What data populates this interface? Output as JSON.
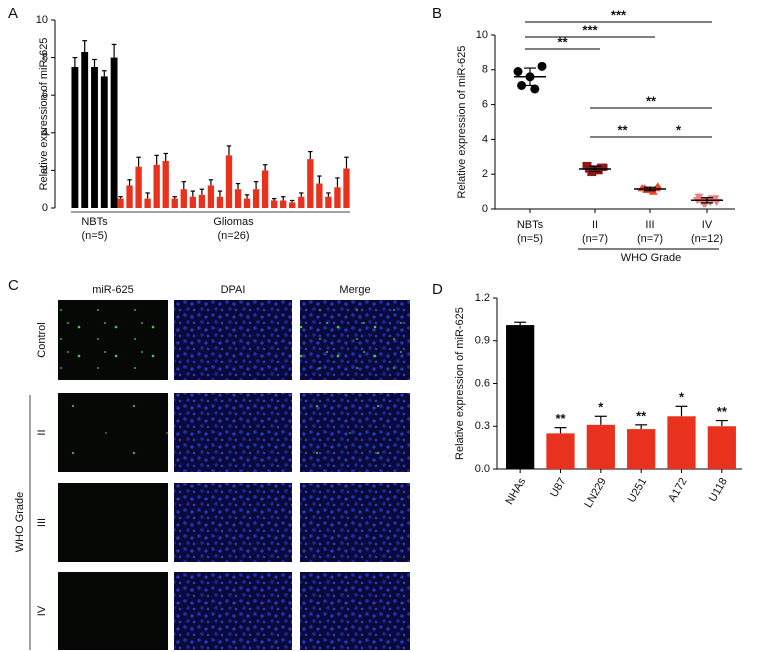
{
  "chart_data": [
    {
      "type": "bar",
      "panel": "A",
      "ylabel": "Relative expression of miR-625",
      "ylim": [
        0,
        10
      ],
      "yticks": [
        0,
        2,
        4,
        6,
        8,
        10
      ],
      "series": [
        {
          "name": "NBTs",
          "sublabel": "(n=5)",
          "color": "#000000",
          "values": [
            7.5,
            8.3,
            7.5,
            7.0,
            8.0
          ],
          "errors": [
            0.5,
            0.6,
            0.4,
            0.3,
            0.7
          ]
        },
        {
          "name": "Gliomas",
          "sublabel": "(n=26)",
          "color": "#e8321e",
          "values": [
            0.5,
            1.2,
            2.2,
            0.5,
            2.3,
            2.5,
            0.5,
            1.0,
            0.6,
            0.7,
            1.2,
            0.6,
            2.8,
            1.0,
            0.5,
            1.0,
            2.0,
            0.4,
            0.4,
            0.3,
            0.6,
            2.6,
            1.3,
            0.6,
            1.1,
            2.1
          ],
          "errors": [
            0.1,
            0.3,
            0.5,
            0.3,
            0.5,
            0.4,
            0.1,
            0.4,
            0.3,
            0.3,
            0.3,
            0.3,
            0.5,
            0.3,
            0.2,
            0.4,
            0.3,
            0.1,
            0.2,
            0.1,
            0.2,
            0.4,
            0.4,
            0.2,
            0.5,
            0.6
          ]
        }
      ]
    },
    {
      "type": "dotplot",
      "panel": "B",
      "ylabel": "Relative expression of miR-625",
      "ylim": [
        0,
        10
      ],
      "yticks": [
        0,
        2,
        4,
        6,
        8,
        10
      ],
      "groups": [
        {
          "label": "NBTs",
          "n_label": "(n=5)",
          "color": "#000000",
          "marker": "circle",
          "values": [
            7.9,
            8.2,
            7.6,
            7.1,
            6.9
          ],
          "mean": 7.6,
          "sd": 0.5
        },
        {
          "label": "II",
          "n_label": "(n=7)",
          "color": "#8b1a1a",
          "marker": "square",
          "values": [
            2.5,
            2.4,
            2.3,
            2.3,
            2.2,
            2.1,
            2.4
          ],
          "mean": 2.3,
          "sd": 0.15
        },
        {
          "label": "III",
          "n_label": "(n=7)",
          "color": "#e8472a",
          "marker": "triangle-up",
          "values": [
            1.2,
            1.3,
            1.1,
            1.2,
            1.0,
            1.1,
            1.2
          ],
          "mean": 1.15,
          "sd": 0.1
        },
        {
          "label": "IV",
          "n_label": "(n=12)",
          "color": "#f08080",
          "marker": "triangle-down",
          "values": [
            0.7,
            0.6,
            0.5,
            0.5,
            0.4,
            0.3,
            0.6,
            0.5,
            0.4,
            0.3,
            0.6,
            0.5
          ],
          "mean": 0.5,
          "sd": 0.15
        }
      ],
      "group_label": "WHO Grade",
      "group_span": [
        1,
        3
      ],
      "comparisons": [
        {
          "pair": [
            0,
            3
          ],
          "label": "***"
        },
        {
          "pair": [
            0,
            2
          ],
          "label": "***"
        },
        {
          "pair": [
            0,
            1
          ],
          "label": "**"
        },
        {
          "pair": [
            1,
            3
          ],
          "label": "**"
        },
        {
          "pair": [
            1,
            2
          ],
          "label": "**"
        },
        {
          "pair": [
            2,
            3
          ],
          "label": "*"
        }
      ]
    },
    {
      "type": "bar",
      "panel": "D",
      "ylabel": "Relative expression of miR-625",
      "ylim": [
        0,
        1.2
      ],
      "yticks": [
        {
          "value": 0,
          "label": "0.0"
        },
        0.3,
        0.6,
        0.9,
        1.2
      ],
      "categories": [
        "NHAs",
        "U87",
        "LN229",
        "U251",
        "A172",
        "U118"
      ],
      "values": [
        1.01,
        0.25,
        0.31,
        0.28,
        0.37,
        0.3
      ],
      "errors": [
        0.02,
        0.04,
        0.06,
        0.03,
        0.07,
        0.04
      ],
      "colors": [
        "#000000",
        "#e8321e",
        "#e8321e",
        "#e8321e",
        "#e8321e",
        "#e8321e"
      ],
      "annotations": [
        null,
        "**",
        "*",
        "**",
        "*",
        "**"
      ]
    }
  ],
  "image_panel": {
    "panel": "C",
    "columns": [
      "miR-625",
      "DPAI",
      "Merge"
    ],
    "rows": [
      "Control",
      "II",
      "III",
      "IV"
    ],
    "row_group": "WHO Grade"
  }
}
